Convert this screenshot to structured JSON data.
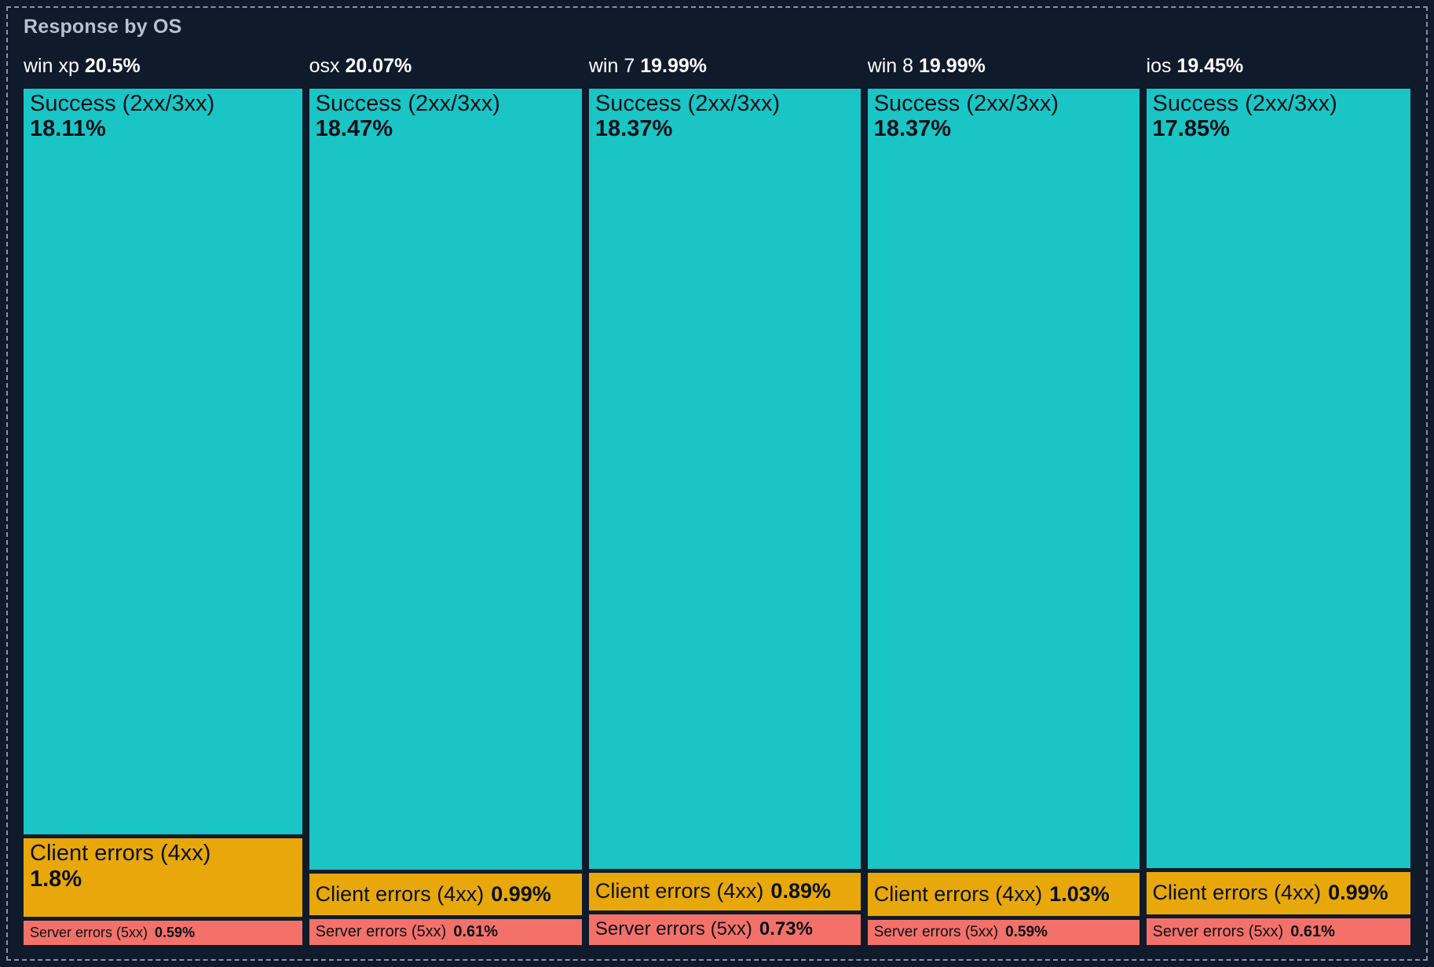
{
  "panel": {
    "title": "Response by OS"
  },
  "chart_data": {
    "type": "treemap",
    "title": "Response by OS",
    "unit": "%",
    "legend_position": "none",
    "background_color": "#0F1A2B",
    "colors": {
      "success": "#1AC5C5",
      "client": "#E8A80B",
      "server": "#F47169"
    },
    "groups": [
      {
        "name": "win xp",
        "total": 20.5,
        "total_label": "20.5%",
        "segments": [
          {
            "kind": "success",
            "label": "Success (2xx/3xx)",
            "value": 18.11,
            "value_label": "18.11%"
          },
          {
            "kind": "client",
            "label": "Client errors (4xx)",
            "value": 1.8,
            "value_label": "1.8%"
          },
          {
            "kind": "server",
            "label": "Server errors (5xx)",
            "value": 0.59,
            "value_label": "0.59%"
          }
        ]
      },
      {
        "name": "osx",
        "total": 20.07,
        "total_label": "20.07%",
        "segments": [
          {
            "kind": "success",
            "label": "Success (2xx/3xx)",
            "value": 18.47,
            "value_label": "18.47%"
          },
          {
            "kind": "client",
            "label": "Client errors (4xx)",
            "value": 0.99,
            "value_label": "0.99%"
          },
          {
            "kind": "server",
            "label": "Server errors (5xx)",
            "value": 0.61,
            "value_label": "0.61%"
          }
        ]
      },
      {
        "name": "win 7",
        "total": 19.99,
        "total_label": "19.99%",
        "segments": [
          {
            "kind": "success",
            "label": "Success (2xx/3xx)",
            "value": 18.37,
            "value_label": "18.37%"
          },
          {
            "kind": "client",
            "label": "Client errors (4xx)",
            "value": 0.89,
            "value_label": "0.89%"
          },
          {
            "kind": "server",
            "label": "Server errors (5xx)",
            "value": 0.73,
            "value_label": "0.73%"
          }
        ]
      },
      {
        "name": "win 8",
        "total": 19.99,
        "total_label": "19.99%",
        "segments": [
          {
            "kind": "success",
            "label": "Success (2xx/3xx)",
            "value": 18.37,
            "value_label": "18.37%"
          },
          {
            "kind": "client",
            "label": "Client errors (4xx)",
            "value": 1.03,
            "value_label": "1.03%"
          },
          {
            "kind": "server",
            "label": "Server errors (5xx)",
            "value": 0.59,
            "value_label": "0.59%"
          }
        ]
      },
      {
        "name": "ios",
        "total": 19.45,
        "total_label": "19.45%",
        "segments": [
          {
            "kind": "success",
            "label": "Success (2xx/3xx)",
            "value": 17.85,
            "value_label": "17.85%"
          },
          {
            "kind": "client",
            "label": "Client errors (4xx)",
            "value": 0.99,
            "value_label": "0.99%"
          },
          {
            "kind": "server",
            "label": "Server errors (5xx)",
            "value": 0.61,
            "value_label": "0.61%"
          }
        ]
      }
    ]
  }
}
